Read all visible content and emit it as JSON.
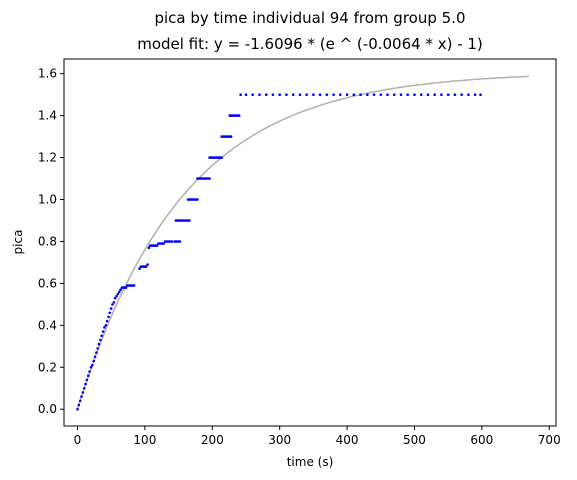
{
  "chart_data": {
    "type": "scatter",
    "title": "pica by time individual 94 from group 5.0",
    "subtitle": "model fit: y = -1.6096 * (e ^ (-0.0064 * x) - 1)",
    "xlabel": "time (s)",
    "ylabel": "pica",
    "xlim": [
      -20,
      710
    ],
    "ylim": [
      -0.08,
      1.67
    ],
    "xticks": [
      0,
      100,
      200,
      300,
      400,
      500,
      600,
      700
    ],
    "yticks": [
      0.0,
      0.2,
      0.4,
      0.6,
      0.8,
      1.0,
      1.2,
      1.4,
      1.6
    ],
    "xtick_labels": [
      "0",
      "100",
      "200",
      "300",
      "400",
      "500",
      "600",
      "700"
    ],
    "ytick_labels": [
      "0.0",
      "0.2",
      "0.4",
      "0.6",
      "0.8",
      "1.0",
      "1.2",
      "1.4",
      "1.6"
    ],
    "grid": false,
    "series": [
      {
        "kind": "points",
        "color": "#0000ff",
        "points": [
          [
            0,
            0.0
          ],
          [
            2,
            0.02
          ],
          [
            4,
            0.04
          ],
          [
            6,
            0.06
          ],
          [
            8,
            0.08
          ],
          [
            10,
            0.1
          ],
          [
            12,
            0.12
          ],
          [
            14,
            0.14
          ],
          [
            16,
            0.16
          ],
          [
            18,
            0.18
          ],
          [
            20,
            0.2
          ],
          [
            22,
            0.21
          ],
          [
            24,
            0.23
          ],
          [
            26,
            0.25
          ],
          [
            28,
            0.27
          ],
          [
            30,
            0.29
          ],
          [
            32,
            0.31
          ],
          [
            34,
            0.33
          ],
          [
            36,
            0.35
          ],
          [
            38,
            0.37
          ],
          [
            40,
            0.39
          ],
          [
            42,
            0.4
          ],
          [
            44,
            0.42
          ],
          [
            46,
            0.44
          ],
          [
            48,
            0.46
          ],
          [
            50,
            0.48
          ],
          [
            52,
            0.5
          ],
          [
            54,
            0.51
          ],
          [
            56,
            0.53
          ],
          [
            58,
            0.54
          ],
          [
            60,
            0.55
          ],
          [
            62,
            0.56
          ],
          [
            64,
            0.57
          ],
          [
            66,
            0.58
          ],
          [
            68,
            0.58
          ],
          [
            70,
            0.58
          ],
          [
            72,
            0.58
          ],
          [
            74,
            0.59
          ],
          [
            76,
            0.59
          ],
          [
            78,
            0.59
          ],
          [
            80,
            0.59
          ],
          [
            82,
            0.59
          ],
          [
            84,
            0.59
          ],
          [
            92,
            0.67
          ],
          [
            94,
            0.68
          ],
          [
            96,
            0.68
          ],
          [
            98,
            0.68
          ],
          [
            100,
            0.68
          ],
          [
            102,
            0.68
          ],
          [
            104,
            0.69
          ],
          [
            106,
            0.77
          ],
          [
            108,
            0.78
          ],
          [
            110,
            0.78
          ],
          [
            112,
            0.78
          ],
          [
            114,
            0.78
          ],
          [
            116,
            0.78
          ],
          [
            118,
            0.78
          ],
          [
            120,
            0.79
          ],
          [
            122,
            0.79
          ],
          [
            124,
            0.79
          ],
          [
            126,
            0.79
          ],
          [
            128,
            0.79
          ],
          [
            130,
            0.8
          ],
          [
            132,
            0.8
          ],
          [
            134,
            0.8
          ],
          [
            136,
            0.8
          ],
          [
            138,
            0.8
          ],
          [
            140,
            0.8
          ],
          [
            144,
            0.8
          ],
          [
            146,
            0.8
          ],
          [
            148,
            0.8
          ],
          [
            150,
            0.8
          ],
          [
            152,
            0.8
          ],
          [
            146,
            0.9
          ],
          [
            148,
            0.9
          ],
          [
            150,
            0.9
          ],
          [
            152,
            0.9
          ],
          [
            154,
            0.9
          ],
          [
            156,
            0.9
          ],
          [
            158,
            0.9
          ],
          [
            160,
            0.9
          ],
          [
            162,
            0.9
          ],
          [
            164,
            0.9
          ],
          [
            166,
            0.9
          ],
          [
            164,
            1.0
          ],
          [
            166,
            1.0
          ],
          [
            168,
            1.0
          ],
          [
            170,
            1.0
          ],
          [
            172,
            1.0
          ],
          [
            174,
            1.0
          ],
          [
            176,
            1.0
          ],
          [
            178,
            1.0
          ],
          [
            178,
            1.1
          ],
          [
            180,
            1.1
          ],
          [
            182,
            1.1
          ],
          [
            184,
            1.1
          ],
          [
            186,
            1.1
          ],
          [
            188,
            1.1
          ],
          [
            190,
            1.1
          ],
          [
            192,
            1.1
          ],
          [
            194,
            1.1
          ],
          [
            196,
            1.1
          ],
          [
            196,
            1.2
          ],
          [
            198,
            1.2
          ],
          [
            200,
            1.2
          ],
          [
            202,
            1.2
          ],
          [
            204,
            1.2
          ],
          [
            206,
            1.2
          ],
          [
            208,
            1.2
          ],
          [
            210,
            1.2
          ],
          [
            212,
            1.2
          ],
          [
            214,
            1.2
          ],
          [
            214,
            1.3
          ],
          [
            216,
            1.3
          ],
          [
            218,
            1.3
          ],
          [
            220,
            1.3
          ],
          [
            222,
            1.3
          ],
          [
            224,
            1.3
          ],
          [
            226,
            1.3
          ],
          [
            228,
            1.3
          ],
          [
            226,
            1.4
          ],
          [
            228,
            1.4
          ],
          [
            230,
            1.4
          ],
          [
            232,
            1.4
          ],
          [
            234,
            1.4
          ],
          [
            236,
            1.4
          ],
          [
            238,
            1.4
          ],
          [
            240,
            1.4
          ],
          [
            242,
            1.5
          ],
          [
            250,
            1.5
          ],
          [
            260,
            1.5
          ],
          [
            270,
            1.5
          ],
          [
            280,
            1.5
          ],
          [
            290,
            1.5
          ],
          [
            300,
            1.5
          ],
          [
            310,
            1.5
          ],
          [
            320,
            1.5
          ],
          [
            330,
            1.5
          ],
          [
            340,
            1.5
          ],
          [
            350,
            1.5
          ],
          [
            360,
            1.5
          ],
          [
            370,
            1.5
          ],
          [
            380,
            1.5
          ],
          [
            390,
            1.5
          ],
          [
            400,
            1.5
          ],
          [
            410,
            1.5
          ],
          [
            420,
            1.5
          ],
          [
            430,
            1.5
          ],
          [
            440,
            1.5
          ],
          [
            450,
            1.5
          ],
          [
            460,
            1.5
          ],
          [
            470,
            1.5
          ],
          [
            480,
            1.5
          ],
          [
            490,
            1.5
          ],
          [
            500,
            1.5
          ],
          [
            510,
            1.5
          ],
          [
            520,
            1.5
          ],
          [
            530,
            1.5
          ],
          [
            540,
            1.5
          ],
          [
            550,
            1.5
          ],
          [
            560,
            1.5
          ],
          [
            570,
            1.5
          ],
          [
            580,
            1.5
          ],
          [
            590,
            1.5
          ],
          [
            598,
            1.5
          ]
        ]
      },
      {
        "kind": "fit-line",
        "color": "#b0b0b0",
        "a": 1.6096,
        "k": 0.0064,
        "x_range": [
          0,
          670
        ]
      }
    ]
  }
}
